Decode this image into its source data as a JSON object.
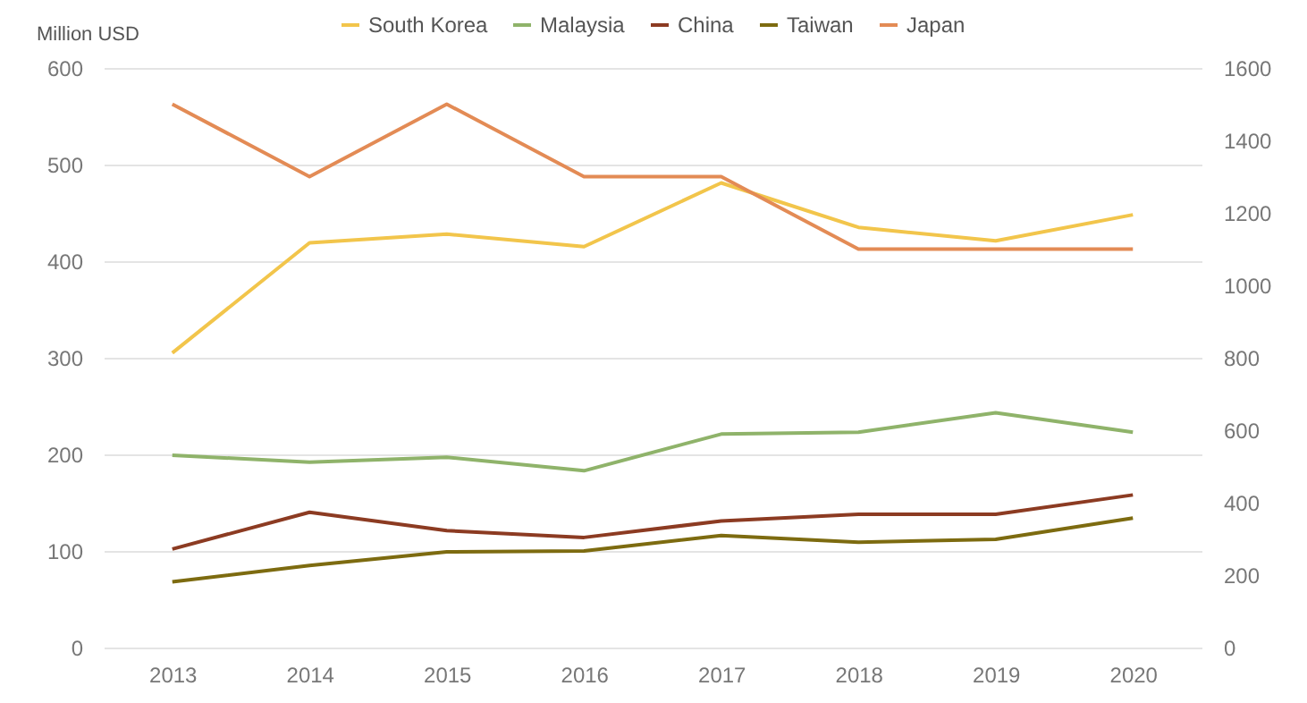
{
  "chart_data": {
    "type": "line",
    "ylabel": "Million USD",
    "categories": [
      "2013",
      "2014",
      "2015",
      "2016",
      "2017",
      "2018",
      "2019",
      "2020"
    ],
    "series": [
      {
        "name": "South Korea",
        "color": "#f2c54b",
        "values": [
          305,
          419,
          428,
          415,
          481,
          435,
          421,
          448
        ]
      },
      {
        "name": "Malaysia",
        "color": "#8fb36a",
        "values": [
          199,
          192,
          197,
          183,
          221,
          223,
          243,
          223
        ]
      },
      {
        "name": "China",
        "color": "#8c3b22",
        "values": [
          102,
          140,
          121,
          114,
          131,
          138,
          138,
          158
        ]
      },
      {
        "name": "Taiwan",
        "color": "#7d6b10",
        "values": [
          68,
          85,
          99,
          100,
          116,
          109,
          112,
          134
        ]
      },
      {
        "name": "Japan",
        "color": "#e38b55",
        "axis": "y2",
        "values": [
          1500,
          1300,
          1500,
          1300,
          1300,
          1100,
          1100,
          1100
        ]
      }
    ],
    "ylim": [
      0,
      600
    ],
    "yticks": [
      0,
      100,
      200,
      300,
      400,
      500,
      600
    ],
    "y2lim": [
      0,
      1600
    ],
    "y2ticks": [
      0,
      200,
      400,
      600,
      800,
      1000,
      1200,
      1400,
      1600
    ],
    "grid": "y",
    "legend": "top",
    "marker": "none",
    "line_style": "solid"
  }
}
